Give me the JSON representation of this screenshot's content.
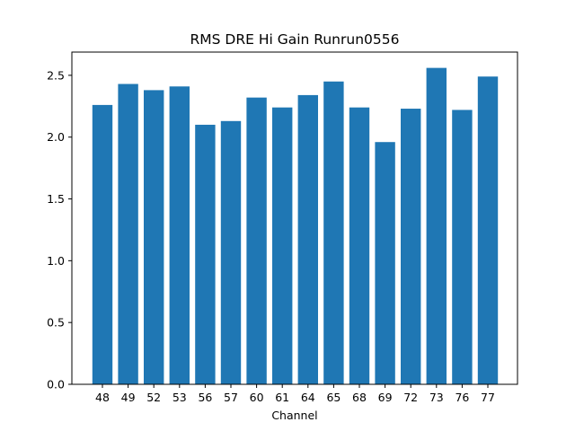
{
  "chart_data": {
    "type": "bar",
    "title": "RMS DRE Hi Gain Runrun0556",
    "xlabel": "Channel",
    "ylabel": "",
    "categories": [
      "48",
      "49",
      "52",
      "53",
      "56",
      "57",
      "60",
      "61",
      "64",
      "65",
      "68",
      "69",
      "72",
      "73",
      "76",
      "77"
    ],
    "values": [
      2.26,
      2.43,
      2.38,
      2.41,
      2.1,
      2.13,
      2.32,
      2.24,
      2.34,
      2.45,
      2.24,
      1.96,
      2.23,
      2.56,
      2.22,
      2.49
    ],
    "ylim": [
      0,
      2.688
    ],
    "yticks": [
      0.0,
      0.5,
      1.0,
      1.5,
      2.0,
      2.5
    ],
    "ytick_labels": [
      "0.0",
      "0.5",
      "1.0",
      "1.5",
      "2.0",
      "2.5"
    ],
    "grid": false,
    "bar_color": "#1f77b4"
  }
}
